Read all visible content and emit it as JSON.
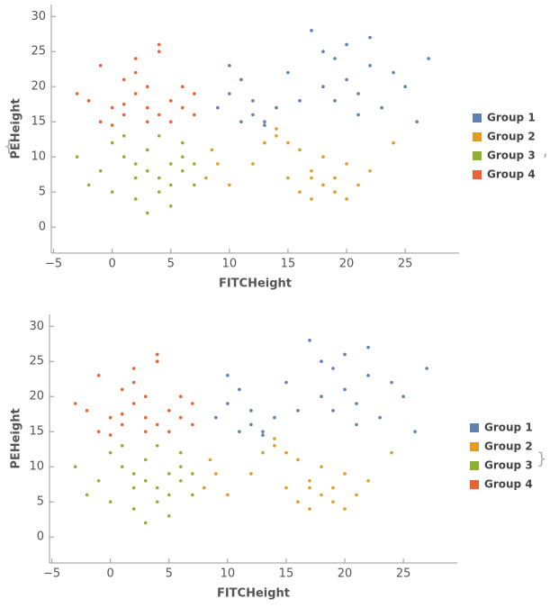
{
  "list_delimiters": {
    "open": "{",
    "separator": ",",
    "close": "}"
  },
  "chart_data": [
    {
      "type": "scatter",
      "x_label": "FITCHeight",
      "y_label": "PEHeight",
      "legend": "right",
      "xlim": [
        -5.2,
        29.6
      ],
      "ylim": [
        -3.7,
        31.7
      ],
      "xticks": [
        {
          "value": -5,
          "label": "−5"
        },
        0,
        5,
        10,
        15,
        20,
        25
      ],
      "yticks": [
        0,
        5,
        10,
        15,
        20,
        25,
        30
      ],
      "series": [
        {
          "name": "Group 1",
          "color": "#5e81b5",
          "x": [
            9,
            10,
            11,
            12,
            13,
            14,
            12,
            11,
            15,
            16,
            18,
            19,
            20,
            21,
            22,
            20,
            18,
            23,
            24,
            25,
            26,
            17,
            19,
            21,
            27,
            10,
            13,
            22
          ],
          "y": [
            17,
            19,
            15,
            16,
            15,
            17,
            18,
            21,
            22,
            18,
            20,
            24,
            21,
            19,
            23,
            26,
            25,
            17,
            22,
            20,
            15,
            28,
            18,
            16,
            24,
            23,
            14.5,
            27
          ]
        },
        {
          "name": "Group 2",
          "color": "#e19c24",
          "x": [
            8,
            9,
            10,
            14,
            15,
            16,
            17,
            18,
            19,
            20,
            21,
            16,
            17,
            18,
            15,
            14,
            22,
            13,
            8.5,
            17,
            19,
            24,
            12,
            20
          ],
          "y": [
            7,
            9,
            6,
            13,
            12,
            11,
            8,
            6,
            7,
            9,
            6,
            5,
            4,
            10,
            7,
            14,
            8,
            12,
            11,
            7,
            5,
            12,
            9,
            4
          ]
        },
        {
          "name": "Group 3",
          "color": "#8fb032",
          "x": [
            0,
            1,
            2,
            3,
            4,
            5,
            6,
            7,
            3,
            4,
            5,
            6,
            2,
            1,
            -1,
            -2,
            4,
            5,
            3,
            6,
            0,
            2,
            7,
            -3
          ],
          "y": [
            12,
            10,
            9,
            8,
            7,
            6,
            8,
            9,
            11,
            5,
            3,
            10,
            4,
            13,
            8,
            6,
            13,
            9,
            2,
            12,
            5,
            7,
            6,
            10
          ]
        },
        {
          "name": "Group 4",
          "color": "#eb6235",
          "x": [
            -2,
            -1,
            0,
            1,
            2,
            3,
            4,
            5,
            6,
            7,
            2,
            3,
            4,
            1,
            0,
            -3,
            5,
            6,
            2,
            3,
            1,
            4,
            7,
            -1
          ],
          "y": [
            18,
            15,
            17,
            16,
            19,
            17,
            16,
            18,
            17,
            16,
            22,
            20,
            25,
            21,
            14.5,
            19,
            15,
            20,
            24,
            15,
            17.5,
            26,
            19,
            23
          ]
        }
      ]
    },
    {
      "type": "scatter",
      "x_label": "FITCHeight",
      "y_label": "PEHeight",
      "legend": "right",
      "xlim": [
        -5.2,
        29.6
      ],
      "ylim": [
        -3.7,
        31.7
      ],
      "xticks": [
        {
          "value": -5,
          "label": "−5"
        },
        0,
        5,
        10,
        15,
        20,
        25
      ],
      "yticks": [
        0,
        5,
        10,
        15,
        20,
        25,
        30
      ],
      "series": [
        {
          "name": "Group 1",
          "color": "#5e81b5",
          "x": [
            9,
            10,
            11,
            12,
            13,
            14,
            12,
            11,
            15,
            16,
            18,
            19,
            20,
            21,
            22,
            20,
            18,
            23,
            24,
            25,
            26,
            17,
            19,
            21,
            27,
            10,
            13,
            22
          ],
          "y": [
            17,
            19,
            15,
            16,
            15,
            17,
            18,
            21,
            22,
            18,
            20,
            24,
            21,
            19,
            23,
            26,
            25,
            17,
            22,
            20,
            15,
            28,
            18,
            16,
            24,
            23,
            14.5,
            27
          ]
        },
        {
          "name": "Group 2",
          "color": "#e19c24",
          "x": [
            8,
            9,
            10,
            14,
            15,
            16,
            17,
            18,
            19,
            20,
            21,
            16,
            17,
            18,
            15,
            14,
            22,
            13,
            8.5,
            17,
            19,
            24,
            12,
            20
          ],
          "y": [
            7,
            9,
            6,
            13,
            12,
            11,
            8,
            6,
            7,
            9,
            6,
            5,
            4,
            10,
            7,
            14,
            8,
            12,
            11,
            7,
            5,
            12,
            9,
            4
          ]
        },
        {
          "name": "Group 3",
          "color": "#8fb032",
          "x": [
            0,
            1,
            2,
            3,
            4,
            5,
            6,
            7,
            3,
            4,
            5,
            6,
            2,
            1,
            -1,
            -2,
            4,
            5,
            3,
            6,
            0,
            2,
            7,
            -3
          ],
          "y": [
            12,
            10,
            9,
            8,
            7,
            6,
            8,
            9,
            11,
            5,
            3,
            10,
            4,
            13,
            8,
            6,
            13,
            9,
            2,
            12,
            5,
            7,
            6,
            10
          ]
        },
        {
          "name": "Group 4",
          "color": "#eb6235",
          "x": [
            -2,
            -1,
            0,
            1,
            2,
            3,
            4,
            5,
            6,
            7,
            2,
            3,
            4,
            1,
            0,
            -3,
            5,
            6,
            2,
            3,
            1,
            4,
            7,
            -1
          ],
          "y": [
            18,
            15,
            17,
            16,
            19,
            17,
            16,
            18,
            17,
            16,
            22,
            20,
            25,
            21,
            14.5,
            19,
            15,
            20,
            24,
            15,
            17.5,
            26,
            19,
            23
          ]
        }
      ]
    }
  ]
}
